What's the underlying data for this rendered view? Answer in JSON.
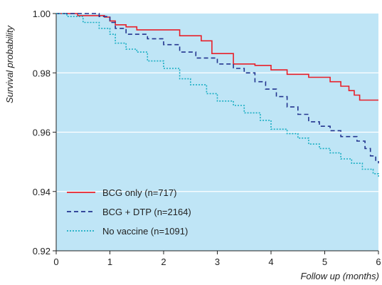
{
  "chart_data": {
    "type": "line",
    "title": "",
    "xlabel": "Follow up (months)",
    "ylabel": "Survival probability",
    "xlim": [
      0,
      6
    ],
    "ylim": [
      0.92,
      1.0
    ],
    "xticks": [
      "0",
      "1",
      "2",
      "3",
      "4",
      "5",
      "6"
    ],
    "yticks": [
      "0.92",
      "0.94",
      "0.96",
      "0.98",
      "1.00"
    ],
    "grid": "horizontal",
    "background": "#bfe5f6",
    "legend_position": "bottom-left",
    "series": [
      {
        "name": "BCG only (n=717)",
        "color": "#e8202a",
        "dash": "solid",
        "x": [
          0,
          0.4,
          0.9,
          1.0,
          1.1,
          1.3,
          1.5,
          2.0,
          2.3,
          2.7,
          2.9,
          3.3,
          3.7,
          4.0,
          4.3,
          4.7,
          5.1,
          5.3,
          5.45,
          5.55,
          5.65,
          6.0
        ],
        "y": [
          1.0,
          0.9993,
          0.9988,
          0.9975,
          0.9962,
          0.9955,
          0.9945,
          0.9945,
          0.9925,
          0.9908,
          0.9865,
          0.983,
          0.9825,
          0.981,
          0.9795,
          0.9785,
          0.977,
          0.9755,
          0.974,
          0.9725,
          0.9708,
          0.9708
        ]
      },
      {
        "name": "BCG + DTP (n=2164)",
        "color": "#23358f",
        "dash": "dashed",
        "x": [
          0,
          0.4,
          0.8,
          1.0,
          1.1,
          1.3,
          1.7,
          2.0,
          2.3,
          2.6,
          3.0,
          3.3,
          3.5,
          3.7,
          3.9,
          4.1,
          4.3,
          4.5,
          4.7,
          4.9,
          5.1,
          5.3,
          5.6,
          5.75,
          5.85,
          5.95,
          6.0
        ],
        "y": [
          1.0,
          1.0,
          0.999,
          0.997,
          0.995,
          0.993,
          0.9915,
          0.9895,
          0.987,
          0.985,
          0.983,
          0.9815,
          0.98,
          0.977,
          0.9745,
          0.972,
          0.9685,
          0.966,
          0.9635,
          0.962,
          0.9605,
          0.9585,
          0.957,
          0.9545,
          0.952,
          0.9505,
          0.9495
        ]
      },
      {
        "name": "No vaccine (n=1091)",
        "color": "#19aec3",
        "dash": "dotted",
        "x": [
          0,
          0.2,
          0.5,
          0.8,
          1.0,
          1.1,
          1.3,
          1.5,
          1.7,
          2.0,
          2.3,
          2.5,
          2.8,
          3.0,
          3.3,
          3.5,
          3.8,
          4.0,
          4.3,
          4.5,
          4.7,
          4.9,
          5.1,
          5.3,
          5.5,
          5.7,
          5.9,
          6.0
        ],
        "y": [
          1.0,
          0.999,
          0.997,
          0.995,
          0.993,
          0.99,
          0.988,
          0.987,
          0.984,
          0.9815,
          0.978,
          0.976,
          0.973,
          0.9705,
          0.969,
          0.9665,
          0.964,
          0.961,
          0.9595,
          0.958,
          0.956,
          0.9545,
          0.953,
          0.951,
          0.9495,
          0.9475,
          0.946,
          0.945
        ]
      }
    ]
  }
}
